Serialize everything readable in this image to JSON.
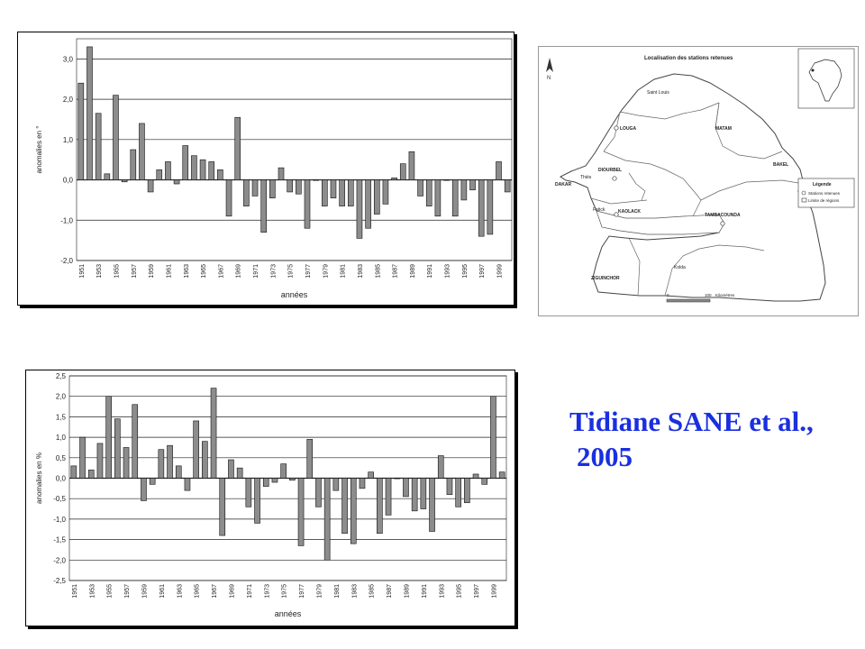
{
  "chart_data": [
    {
      "type": "bar",
      "ylabel": "anomalies en °",
      "xlabel": "années",
      "ylim": [
        -2.0,
        3.5
      ],
      "yticks": [
        "-2,0",
        "-1,0",
        "0,0",
        "1,0",
        "2,0",
        "3,0"
      ],
      "ytick_values": [
        -2,
        -1,
        0,
        1,
        2,
        3
      ],
      "grid": true,
      "x": [
        1951,
        1952,
        1953,
        1954,
        1955,
        1956,
        1957,
        1958,
        1959,
        1960,
        1961,
        1962,
        1963,
        1964,
        1965,
        1966,
        1967,
        1968,
        1969,
        1970,
        1971,
        1972,
        1973,
        1974,
        1975,
        1976,
        1977,
        1978,
        1979,
        1980,
        1981,
        1982,
        1983,
        1984,
        1985,
        1986,
        1987,
        1988,
        1989,
        1990,
        1991,
        1992,
        1993,
        1994,
        1995,
        1996,
        1997,
        1998,
        1999,
        2000
      ],
      "xtick_labels": [
        "1951",
        "1953",
        "1955",
        "1957",
        "1959",
        "1961",
        "1963",
        "1965",
        "1967",
        "1969",
        "1971",
        "1973",
        "1975",
        "1977",
        "1979",
        "1981",
        "1983",
        "1985",
        "1987",
        "1989",
        "1991",
        "1993",
        "1995",
        "1997",
        "1999"
      ],
      "values": [
        2.4,
        3.3,
        1.65,
        0.15,
        2.1,
        -0.05,
        0.75,
        1.4,
        -0.3,
        0.25,
        0.45,
        -0.1,
        0.85,
        0.6,
        0.5,
        0.45,
        0.25,
        -0.9,
        1.55,
        -0.65,
        -0.4,
        -1.3,
        -0.45,
        0.3,
        -0.3,
        -0.35,
        -1.2,
        0.0,
        -0.65,
        -0.45,
        -0.65,
        -0.65,
        -1.45,
        -1.2,
        -0.85,
        -0.6,
        0.05,
        0.4,
        0.7,
        -0.4,
        -0.65,
        -0.9,
        0.0,
        -0.9,
        -0.5,
        -0.25,
        -1.4,
        -1.35,
        0.45,
        -0.3
      ]
    },
    {
      "type": "bar",
      "ylabel": "anomalies en %",
      "xlabel": "années",
      "ylim": [
        -2.5,
        2.5
      ],
      "yticks": [
        "-2,5",
        "-2,0",
        "-1,5",
        "-1,0",
        "-0,5",
        "0,0",
        "0,5",
        "1,0",
        "1,5",
        "2,0",
        "2,5"
      ],
      "ytick_values": [
        -2.5,
        -2,
        -1.5,
        -1,
        -0.5,
        0,
        0.5,
        1,
        1.5,
        2,
        2.5
      ],
      "grid": true,
      "x": [
        1951,
        1952,
        1953,
        1954,
        1955,
        1956,
        1957,
        1958,
        1959,
        1960,
        1961,
        1962,
        1963,
        1964,
        1965,
        1966,
        1967,
        1968,
        1969,
        1970,
        1971,
        1972,
        1973,
        1974,
        1975,
        1976,
        1977,
        1978,
        1979,
        1980,
        1981,
        1982,
        1983,
        1984,
        1985,
        1986,
        1987,
        1988,
        1989,
        1990,
        1991,
        1992,
        1993,
        1994,
        1995,
        1996,
        1997,
        1998,
        1999,
        2000
      ],
      "xtick_labels": [
        "1951",
        "1953",
        "1955",
        "1957",
        "1959",
        "1961",
        "1963",
        "1965",
        "1967",
        "1969",
        "1971",
        "1973",
        "1975",
        "1977",
        "1979",
        "1981",
        "1983",
        "1985",
        "1987",
        "1989",
        "1991",
        "1993",
        "1995",
        "1997",
        "1999"
      ],
      "values": [
        0.3,
        1.0,
        0.2,
        0.85,
        2.0,
        1.45,
        0.75,
        1.8,
        -0.55,
        -0.15,
        0.7,
        0.8,
        0.3,
        -0.3,
        1.4,
        0.9,
        2.2,
        -1.4,
        0.45,
        0.25,
        -0.7,
        -1.1,
        -0.2,
        -0.1,
        0.35,
        -0.05,
        -1.65,
        0.95,
        -0.7,
        -2.0,
        -0.3,
        -1.35,
        -1.6,
        -0.25,
        0.15,
        -1.35,
        -0.9,
        0.0,
        -0.45,
        -0.8,
        -0.75,
        -1.3,
        0.55,
        -0.4,
        -0.7,
        -0.6,
        0.1,
        -0.15,
        2.0,
        0.15
      ]
    }
  ],
  "map": {
    "title": "Localisation des stations retenues",
    "north_label": "N",
    "regions": [
      "Saint Louis",
      "LOUGA",
      "MATAM",
      "BAKEL",
      "DIOURBEL",
      "DAKAR",
      "Thiès",
      "Fatick",
      "KAOLACK",
      "TAMBACOUNDA",
      "Kolda",
      "ZIGUINCHOR"
    ],
    "legend": {
      "title": "Légende",
      "items": [
        "Stations retenues",
        "Limite de régions"
      ]
    },
    "scale": {
      "start": "0",
      "end": "100",
      "unit": "Kilomètres"
    }
  },
  "credit": {
    "line1": "Tidiane SANE et al.,",
    "line2": "2005"
  },
  "colors": {
    "bar_fill": "#8c8c8c",
    "credit_text": "#1a2fe0"
  }
}
